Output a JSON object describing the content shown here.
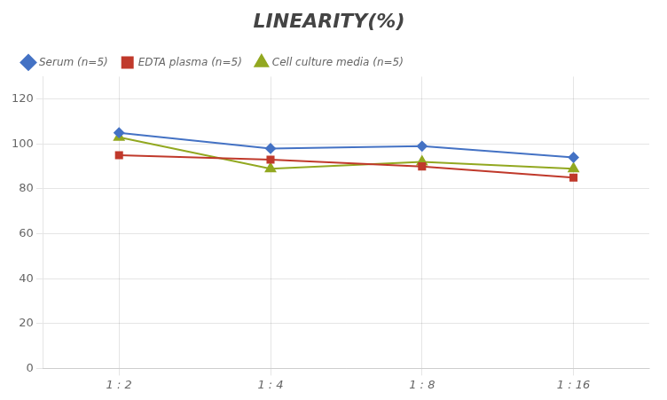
{
  "chart_data": {
    "type": "line",
    "title": "LINEARITY(%)",
    "categories": [
      "1 : 2",
      "1 : 4",
      "1 : 8",
      "1 : 16"
    ],
    "series": [
      {
        "name": "Serum (n=5)",
        "color": "#4472C4",
        "marker": "diamond",
        "values": [
          105,
          98,
          99,
          94
        ]
      },
      {
        "name": "EDTA plasma (n=5)",
        "color": "#C0392B",
        "marker": "square",
        "values": [
          95,
          93,
          90,
          85
        ]
      },
      {
        "name": "Cell culture media (n=5)",
        "color": "#92A820",
        "marker": "triangle",
        "values": [
          103,
          89,
          92,
          89
        ]
      }
    ],
    "ylim": [
      0,
      130
    ],
    "yticks": [
      0,
      20,
      40,
      60,
      80,
      100,
      120
    ],
    "grid": true,
    "legend": "upper left"
  }
}
